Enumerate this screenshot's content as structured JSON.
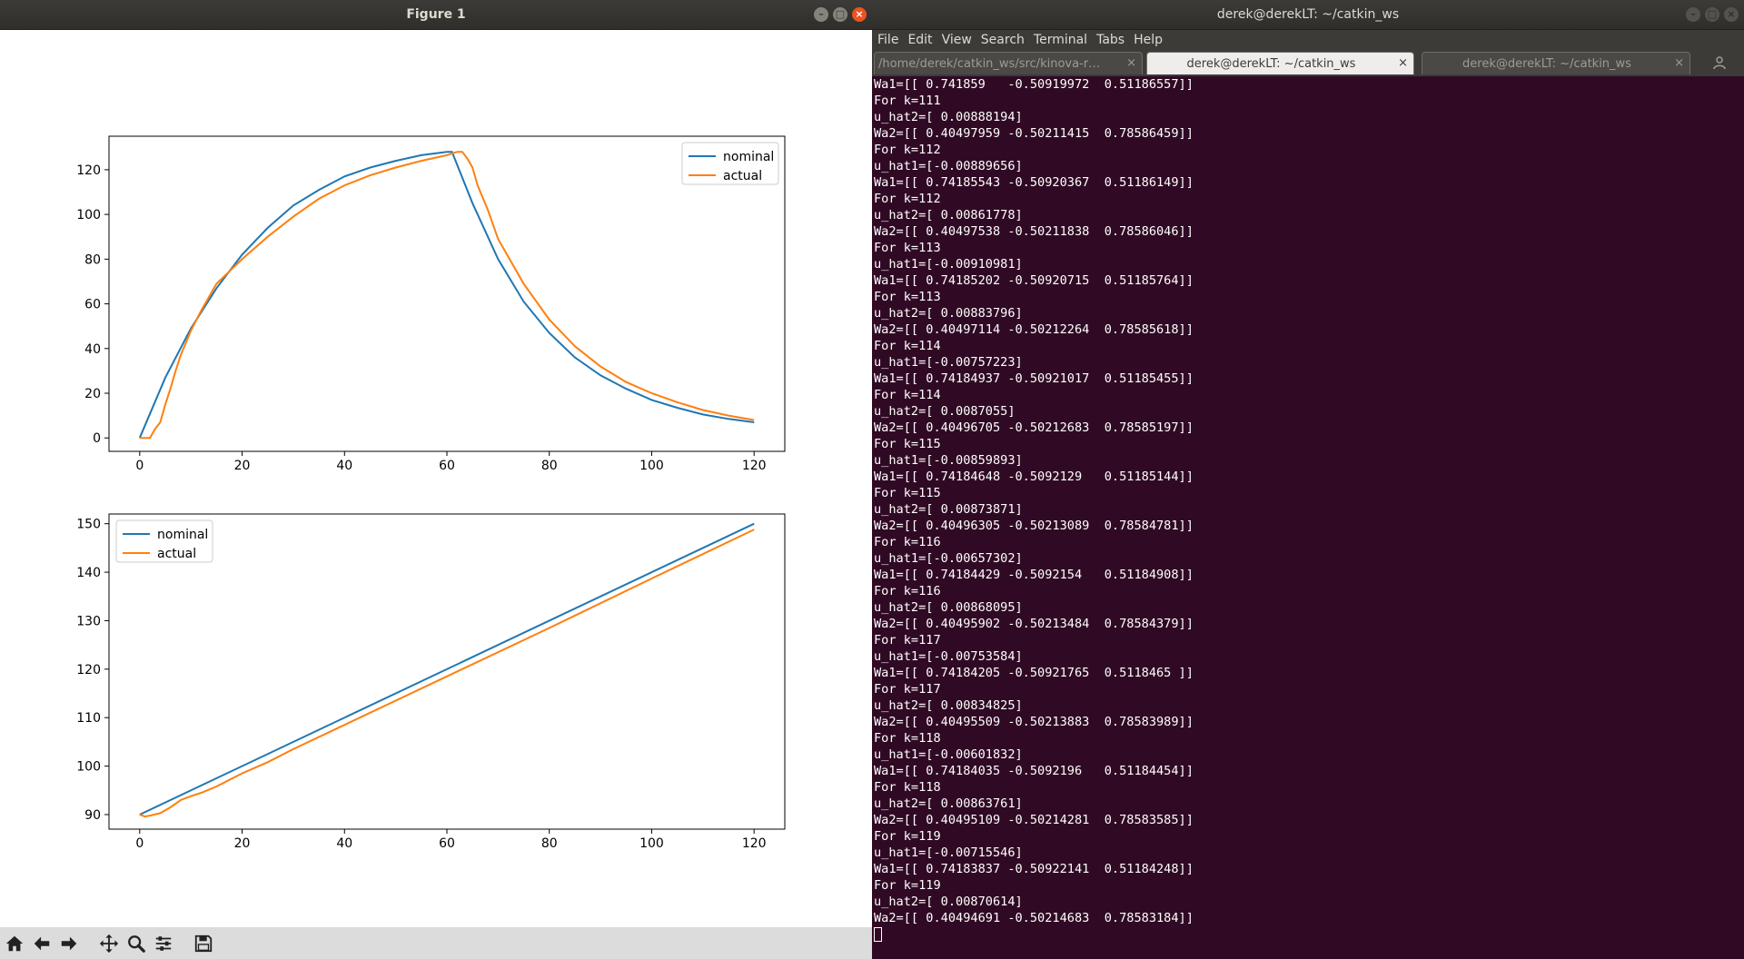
{
  "figure_window": {
    "title": "Figure 1",
    "toolbar": [
      "home-icon",
      "back-icon",
      "forward-icon",
      "pan-icon",
      "zoom-icon",
      "configure-icon",
      "save-icon"
    ]
  },
  "terminal_window": {
    "title": "derek@derekLT: ~/catkin_ws",
    "menu": [
      "File",
      "Edit",
      "View",
      "Search",
      "Terminal",
      "Tabs",
      "Help"
    ],
    "tabs": [
      {
        "label": "/home/derek/catkin_ws/src/kinova-r…",
        "active": false
      },
      {
        "label": "derek@derekLT: ~/catkin_ws",
        "active": true
      },
      {
        "label": "derek@derekLT: ~/catkin_ws",
        "active": false
      }
    ],
    "lines": [
      "Wa1=[[ 0.741859   -0.50919972  0.51186557]]",
      "For k=111",
      "u_hat2=[ 0.00888194]",
      "Wa2=[[ 0.40497959 -0.50211415  0.78586459]]",
      "For k=112",
      "u_hat1=[-0.00889656]",
      "Wa1=[[ 0.74185543 -0.50920367  0.51186149]]",
      "For k=112",
      "u_hat2=[ 0.00861778]",
      "Wa2=[[ 0.40497538 -0.50211838  0.78586046]]",
      "For k=113",
      "u_hat1=[-0.00910981]",
      "Wa1=[[ 0.74185202 -0.50920715  0.51185764]]",
      "For k=113",
      "u_hat2=[ 0.00883796]",
      "Wa2=[[ 0.40497114 -0.50212264  0.78585618]]",
      "For k=114",
      "u_hat1=[-0.00757223]",
      "Wa1=[[ 0.74184937 -0.50921017  0.51185455]]",
      "For k=114",
      "u_hat2=[ 0.0087055]",
      "Wa2=[[ 0.40496705 -0.50212683  0.78585197]]",
      "For k=115",
      "u_hat1=[-0.00859893]",
      "Wa1=[[ 0.74184648 -0.5092129   0.51185144]]",
      "For k=115",
      "u_hat2=[ 0.00873871]",
      "Wa2=[[ 0.40496305 -0.50213089  0.78584781]]",
      "For k=116",
      "u_hat1=[-0.00657302]",
      "Wa1=[[ 0.74184429 -0.5092154   0.51184908]]",
      "For k=116",
      "u_hat2=[ 0.00868095]",
      "Wa2=[[ 0.40495902 -0.50213484  0.78584379]]",
      "For k=117",
      "u_hat1=[-0.00753584]",
      "Wa1=[[ 0.74184205 -0.50921765  0.5118465 ]]",
      "For k=117",
      "u_hat2=[ 0.00834825]",
      "Wa2=[[ 0.40495509 -0.50213883  0.78583989]]",
      "For k=118",
      "u_hat1=[-0.00601832]",
      "Wa1=[[ 0.74184035 -0.5092196   0.51184454]]",
      "For k=118",
      "u_hat2=[ 0.00863761]",
      "Wa2=[[ 0.40495109 -0.50214281  0.78583585]]",
      "For k=119",
      "u_hat1=[-0.00715546]",
      "Wa1=[[ 0.74183837 -0.50922141  0.51184248]]",
      "For k=119",
      "u_hat2=[ 0.00870614]",
      "Wa2=[[ 0.40494691 -0.50214683  0.78583184]]"
    ]
  },
  "colors": {
    "nominal": "#1f77b4",
    "actual": "#ff7f0e",
    "terminal_bg": "#300a24"
  },
  "chart_data": [
    {
      "type": "line",
      "title": "",
      "xlabel": "",
      "ylabel": "",
      "xlim": [
        -6,
        126
      ],
      "ylim": [
        -6,
        135
      ],
      "xticks": [
        0,
        20,
        40,
        60,
        80,
        100,
        120
      ],
      "yticks": [
        0,
        20,
        40,
        60,
        80,
        100,
        120
      ],
      "legend_position": "top-right",
      "series": [
        {
          "name": "nominal",
          "x": [
            0,
            5,
            10,
            15,
            20,
            25,
            30,
            35,
            40,
            45,
            50,
            55,
            60,
            61,
            65,
            70,
            75,
            80,
            85,
            90,
            95,
            100,
            105,
            110,
            115,
            120
          ],
          "y": [
            0,
            27,
            49,
            67,
            82,
            94,
            104,
            111,
            117,
            121,
            124,
            126.5,
            128,
            128,
            105,
            80,
            61,
            47,
            36,
            28,
            22,
            17,
            13.5,
            10.5,
            8.5,
            7
          ]
        },
        {
          "name": "actual",
          "x": [
            0,
            1,
            2,
            3,
            4,
            5,
            6,
            7,
            8,
            10,
            12,
            15,
            20,
            25,
            30,
            35,
            40,
            45,
            50,
            55,
            60,
            62,
            63,
            64,
            65,
            66,
            68,
            70,
            75,
            80,
            85,
            90,
            95,
            100,
            105,
            110,
            115,
            120
          ],
          "y": [
            0,
            0,
            0,
            4,
            7,
            15,
            22,
            30,
            37,
            48,
            57,
            69,
            80,
            90,
            99,
            107,
            113,
            117.5,
            121,
            124,
            126.5,
            128,
            128,
            125,
            121,
            113,
            102,
            89,
            69,
            53,
            41,
            32,
            25,
            20,
            16,
            12.5,
            10,
            8
          ]
        }
      ]
    },
    {
      "type": "line",
      "title": "",
      "xlabel": "",
      "ylabel": "",
      "xlim": [
        -6,
        126
      ],
      "ylim": [
        87,
        152
      ],
      "xticks": [
        0,
        20,
        40,
        60,
        80,
        100,
        120
      ],
      "yticks": [
        90,
        100,
        110,
        120,
        130,
        140,
        150
      ],
      "legend_position": "top-left",
      "series": [
        {
          "name": "nominal",
          "x": [
            0,
            120
          ],
          "y": [
            90,
            150
          ]
        },
        {
          "name": "actual",
          "x": [
            0,
            1,
            2,
            4,
            6,
            8,
            10,
            12,
            15,
            20,
            25,
            30,
            40,
            60,
            80,
            100,
            120
          ],
          "y": [
            90,
            89.6,
            89.8,
            90.3,
            91.5,
            93,
            93.8,
            94.5,
            95.8,
            98.5,
            100.8,
            103.5,
            108.5,
            118.5,
            128.5,
            138.7,
            148.8
          ]
        }
      ]
    }
  ]
}
